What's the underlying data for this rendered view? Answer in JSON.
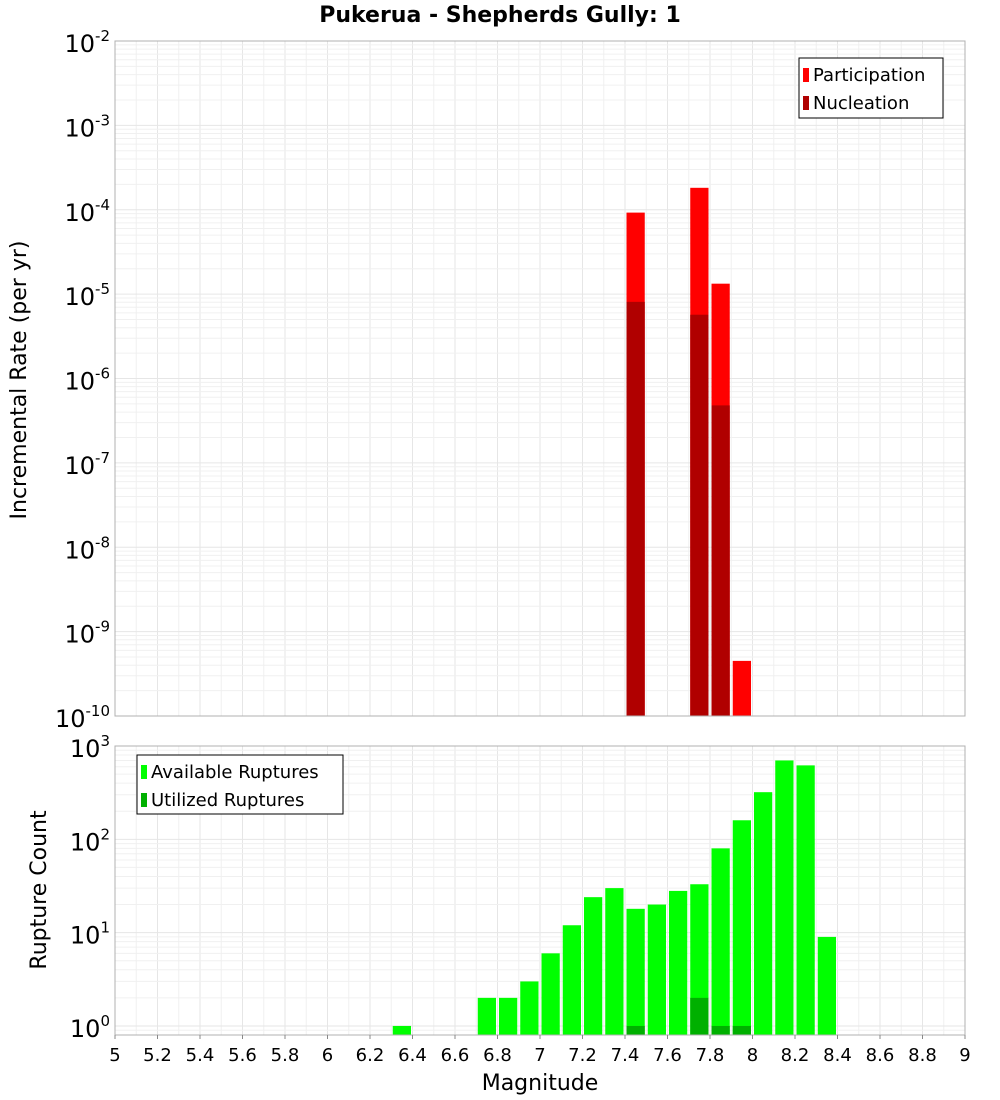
{
  "chart_data": [
    {
      "type": "bar",
      "title": "Pukerua - Shepherds Gully: 1",
      "xlabel": "",
      "ylabel": "Incremental Rate (per yr)",
      "yscale": "log",
      "ylim": [
        1e-10,
        0.01
      ],
      "xlim": [
        5,
        9
      ],
      "grid": true,
      "legend_position": "top-right",
      "y_tick_exponents": [
        "-2",
        "-3",
        "-4",
        "-5",
        "-6",
        "-7",
        "-8",
        "-9",
        "-10"
      ],
      "y_tick_base": "10",
      "bin_width": 0.1,
      "series": [
        {
          "name": "Participation",
          "color": "#ff0000",
          "x": [
            7.45,
            7.75,
            7.85,
            7.95
          ],
          "values": [
            9.25e-05,
            0.000182,
            1.33e-05,
            4.5e-10
          ]
        },
        {
          "name": "Nucleation",
          "color": "#b00000",
          "x": [
            7.45,
            7.75,
            7.85
          ],
          "values": [
            8.1e-06,
            5.7e-06,
            4.8e-07
          ]
        }
      ]
    },
    {
      "type": "bar",
      "title": "",
      "xlabel": "Magnitude",
      "ylabel": "Rupture Count",
      "yscale": "log",
      "ylim": [
        0.8,
        1000
      ],
      "xlim": [
        5,
        9
      ],
      "grid": true,
      "legend_position": "top-left",
      "y_tick_exponents": [
        "3",
        "2",
        "1",
        "0"
      ],
      "y_tick_base": "10",
      "x_tick_labels": [
        "5",
        "5.2",
        "5.4",
        "5.6",
        "5.8",
        "6",
        "6.2",
        "6.4",
        "6.6",
        "6.8",
        "7",
        "7.2",
        "7.4",
        "7.6",
        "7.8",
        "8",
        "8.2",
        "8.4",
        "8.6",
        "8.8",
        "9"
      ],
      "bin_width": 0.1,
      "series": [
        {
          "name": "Available Ruptures",
          "color": "#00ff00",
          "x": [
            6.35,
            6.75,
            6.85,
            6.95,
            7.05,
            7.15,
            7.25,
            7.35,
            7.45,
            7.55,
            7.65,
            7.75,
            7.85,
            7.95,
            8.05,
            8.15,
            8.25,
            8.35
          ],
          "values": [
            1,
            2,
            2,
            3,
            6,
            12,
            24,
            30,
            18,
            20,
            28,
            33,
            80,
            160,
            320,
            700,
            620,
            9
          ]
        },
        {
          "name": "Utilized Ruptures",
          "color": "#00b000",
          "x": [
            7.45,
            7.75,
            7.85,
            7.95
          ],
          "values": [
            1,
            2,
            1,
            1
          ]
        }
      ]
    }
  ]
}
